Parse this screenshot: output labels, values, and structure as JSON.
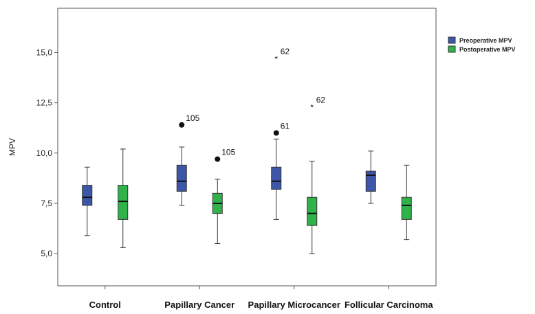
{
  "chart_data": {
    "type": "boxplot",
    "ylabel": "MPV",
    "ylim": [
      3.4,
      17.2
    ],
    "yticks": [
      5.0,
      7.5,
      10.0,
      12.5,
      15.0
    ],
    "ytick_labels": [
      "5,0",
      "7,5",
      "10,0",
      "12,5",
      "15,0"
    ],
    "categories": [
      "Control",
      "Papillary Cancer",
      "Papillary Microcancer",
      "Follicular Carcinoma"
    ],
    "legend": {
      "position": "top-right"
    },
    "series": [
      {
        "name": "Preoperative MPV",
        "color": "#3d56a8",
        "boxes": [
          {
            "whisker_low": 5.9,
            "q1": 7.4,
            "median": 7.8,
            "q3": 8.4,
            "whisker_high": 9.3,
            "outliers": []
          },
          {
            "whisker_low": 7.4,
            "q1": 8.1,
            "median": 8.6,
            "q3": 9.4,
            "whisker_high": 10.3,
            "outliers": [
              {
                "value": 11.4,
                "label": "105",
                "marker": "circle"
              }
            ]
          },
          {
            "whisker_low": 6.7,
            "q1": 8.2,
            "median": 8.6,
            "q3": 9.3,
            "whisker_high": 10.7,
            "outliers": [
              {
                "value": 11.0,
                "label": "61",
                "marker": "circle"
              },
              {
                "value": 14.7,
                "label": "62",
                "marker": "star"
              }
            ]
          },
          {
            "whisker_low": 7.5,
            "q1": 8.1,
            "median": 8.9,
            "q3": 9.1,
            "whisker_high": 10.1,
            "outliers": []
          }
        ]
      },
      {
        "name": "Postoperative MPV",
        "color": "#2fb24a",
        "boxes": [
          {
            "whisker_low": 5.3,
            "q1": 6.7,
            "median": 7.6,
            "q3": 8.4,
            "whisker_high": 10.2,
            "outliers": []
          },
          {
            "whisker_low": 5.5,
            "q1": 7.0,
            "median": 7.5,
            "q3": 8.0,
            "whisker_high": 8.7,
            "outliers": [
              {
                "value": 9.7,
                "label": "105",
                "marker": "circle"
              }
            ]
          },
          {
            "whisker_low": 5.0,
            "q1": 6.4,
            "median": 7.0,
            "q3": 7.8,
            "whisker_high": 9.6,
            "outliers": [
              {
                "value": 12.3,
                "label": "62",
                "marker": "star"
              }
            ]
          },
          {
            "whisker_low": 5.7,
            "q1": 6.7,
            "median": 7.4,
            "q3": 7.8,
            "whisker_high": 9.4,
            "outliers": []
          }
        ]
      }
    ]
  }
}
